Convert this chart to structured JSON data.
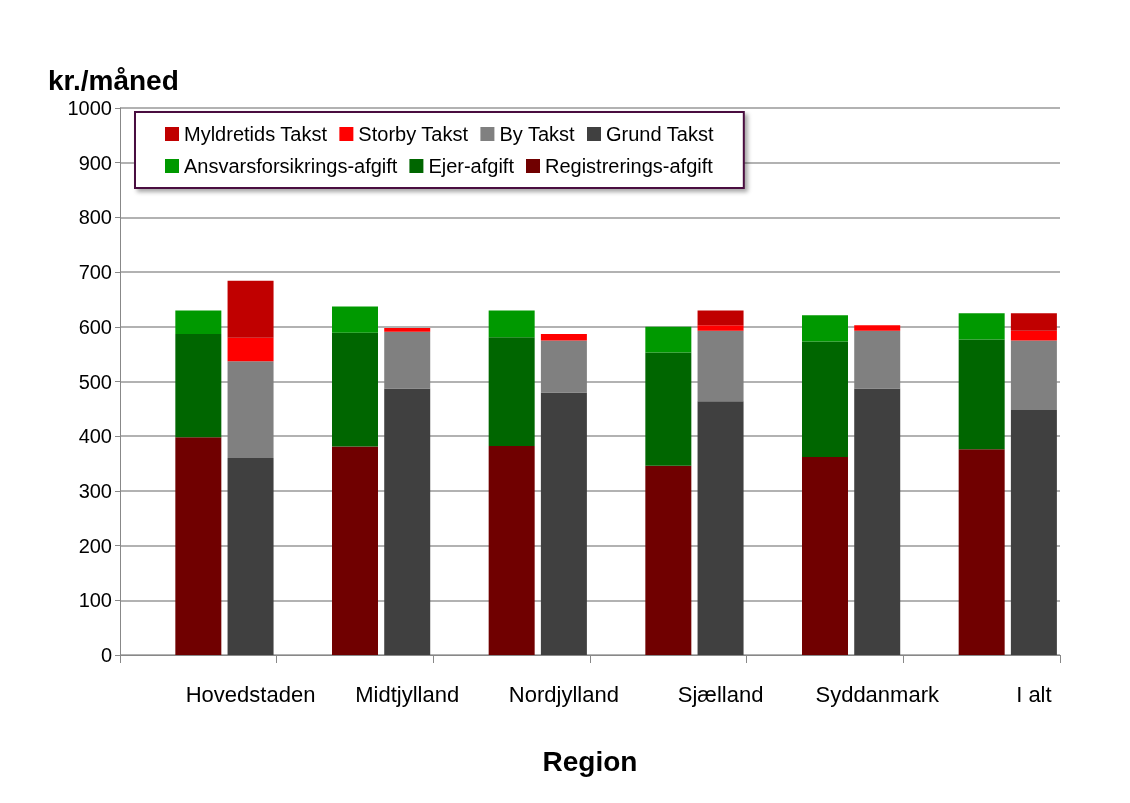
{
  "chart_data": {
    "type": "bar",
    "xlabel": "Region",
    "ylabel": "kr./måned",
    "categories": [
      null,
      null,
      "Hovedstaden",
      null,
      null,
      "Midtjylland",
      null,
      null,
      "Nordjylland",
      null,
      null,
      "Sjælland",
      null,
      null,
      "Syddanmark",
      null,
      null,
      "I alt"
    ],
    "stacked": true,
    "ylim": [
      0,
      1000
    ],
    "yticks": [
      0,
      100,
      200,
      300,
      400,
      500,
      600,
      700,
      800,
      900,
      1000
    ],
    "grid": "y",
    "legend": "top left",
    "series": [
      {
        "name": "Registrerings-afgift",
        "color": "#700000",
        "values": [
          null,
          398,
          null,
          null,
          381,
          null,
          null,
          382,
          null,
          null,
          346,
          null,
          null,
          362,
          null,
          null,
          376,
          null
        ]
      },
      {
        "name": "Ejer-afgift",
        "color": "#006600",
        "values": [
          null,
          189,
          null,
          null,
          208,
          null,
          null,
          199,
          null,
          null,
          207,
          null,
          null,
          211,
          null,
          null,
          201,
          null
        ]
      },
      {
        "name": "Ansvarsforsikrings-afgift",
        "color": "#009900",
        "values": [
          null,
          43,
          null,
          null,
          48,
          null,
          null,
          49,
          null,
          null,
          47,
          null,
          null,
          48,
          null,
          null,
          48,
          null
        ]
      },
      {
        "name": "Grund Takst",
        "color": "#404040",
        "values": [
          null,
          null,
          360,
          null,
          null,
          487,
          null,
          null,
          480,
          null,
          null,
          464,
          null,
          null,
          487,
          null,
          null,
          448
        ]
      },
      {
        "name": "By Takst",
        "color": "#808080",
        "values": [
          null,
          null,
          177,
          null,
          null,
          104,
          null,
          null,
          95,
          null,
          null,
          129,
          null,
          null,
          106,
          null,
          null,
          127
        ]
      },
      {
        "name": "Storby Takst",
        "color": "#ff0000",
        "values": [
          null,
          null,
          43,
          null,
          null,
          7,
          null,
          null,
          12,
          null,
          null,
          10,
          null,
          null,
          10,
          null,
          null,
          18
        ]
      },
      {
        "name": "Myldretids Takst",
        "color": "#c00000",
        "values": [
          null,
          null,
          104,
          null,
          null,
          0,
          null,
          null,
          0,
          null,
          null,
          27,
          null,
          null,
          0,
          null,
          null,
          32
        ]
      }
    ]
  }
}
